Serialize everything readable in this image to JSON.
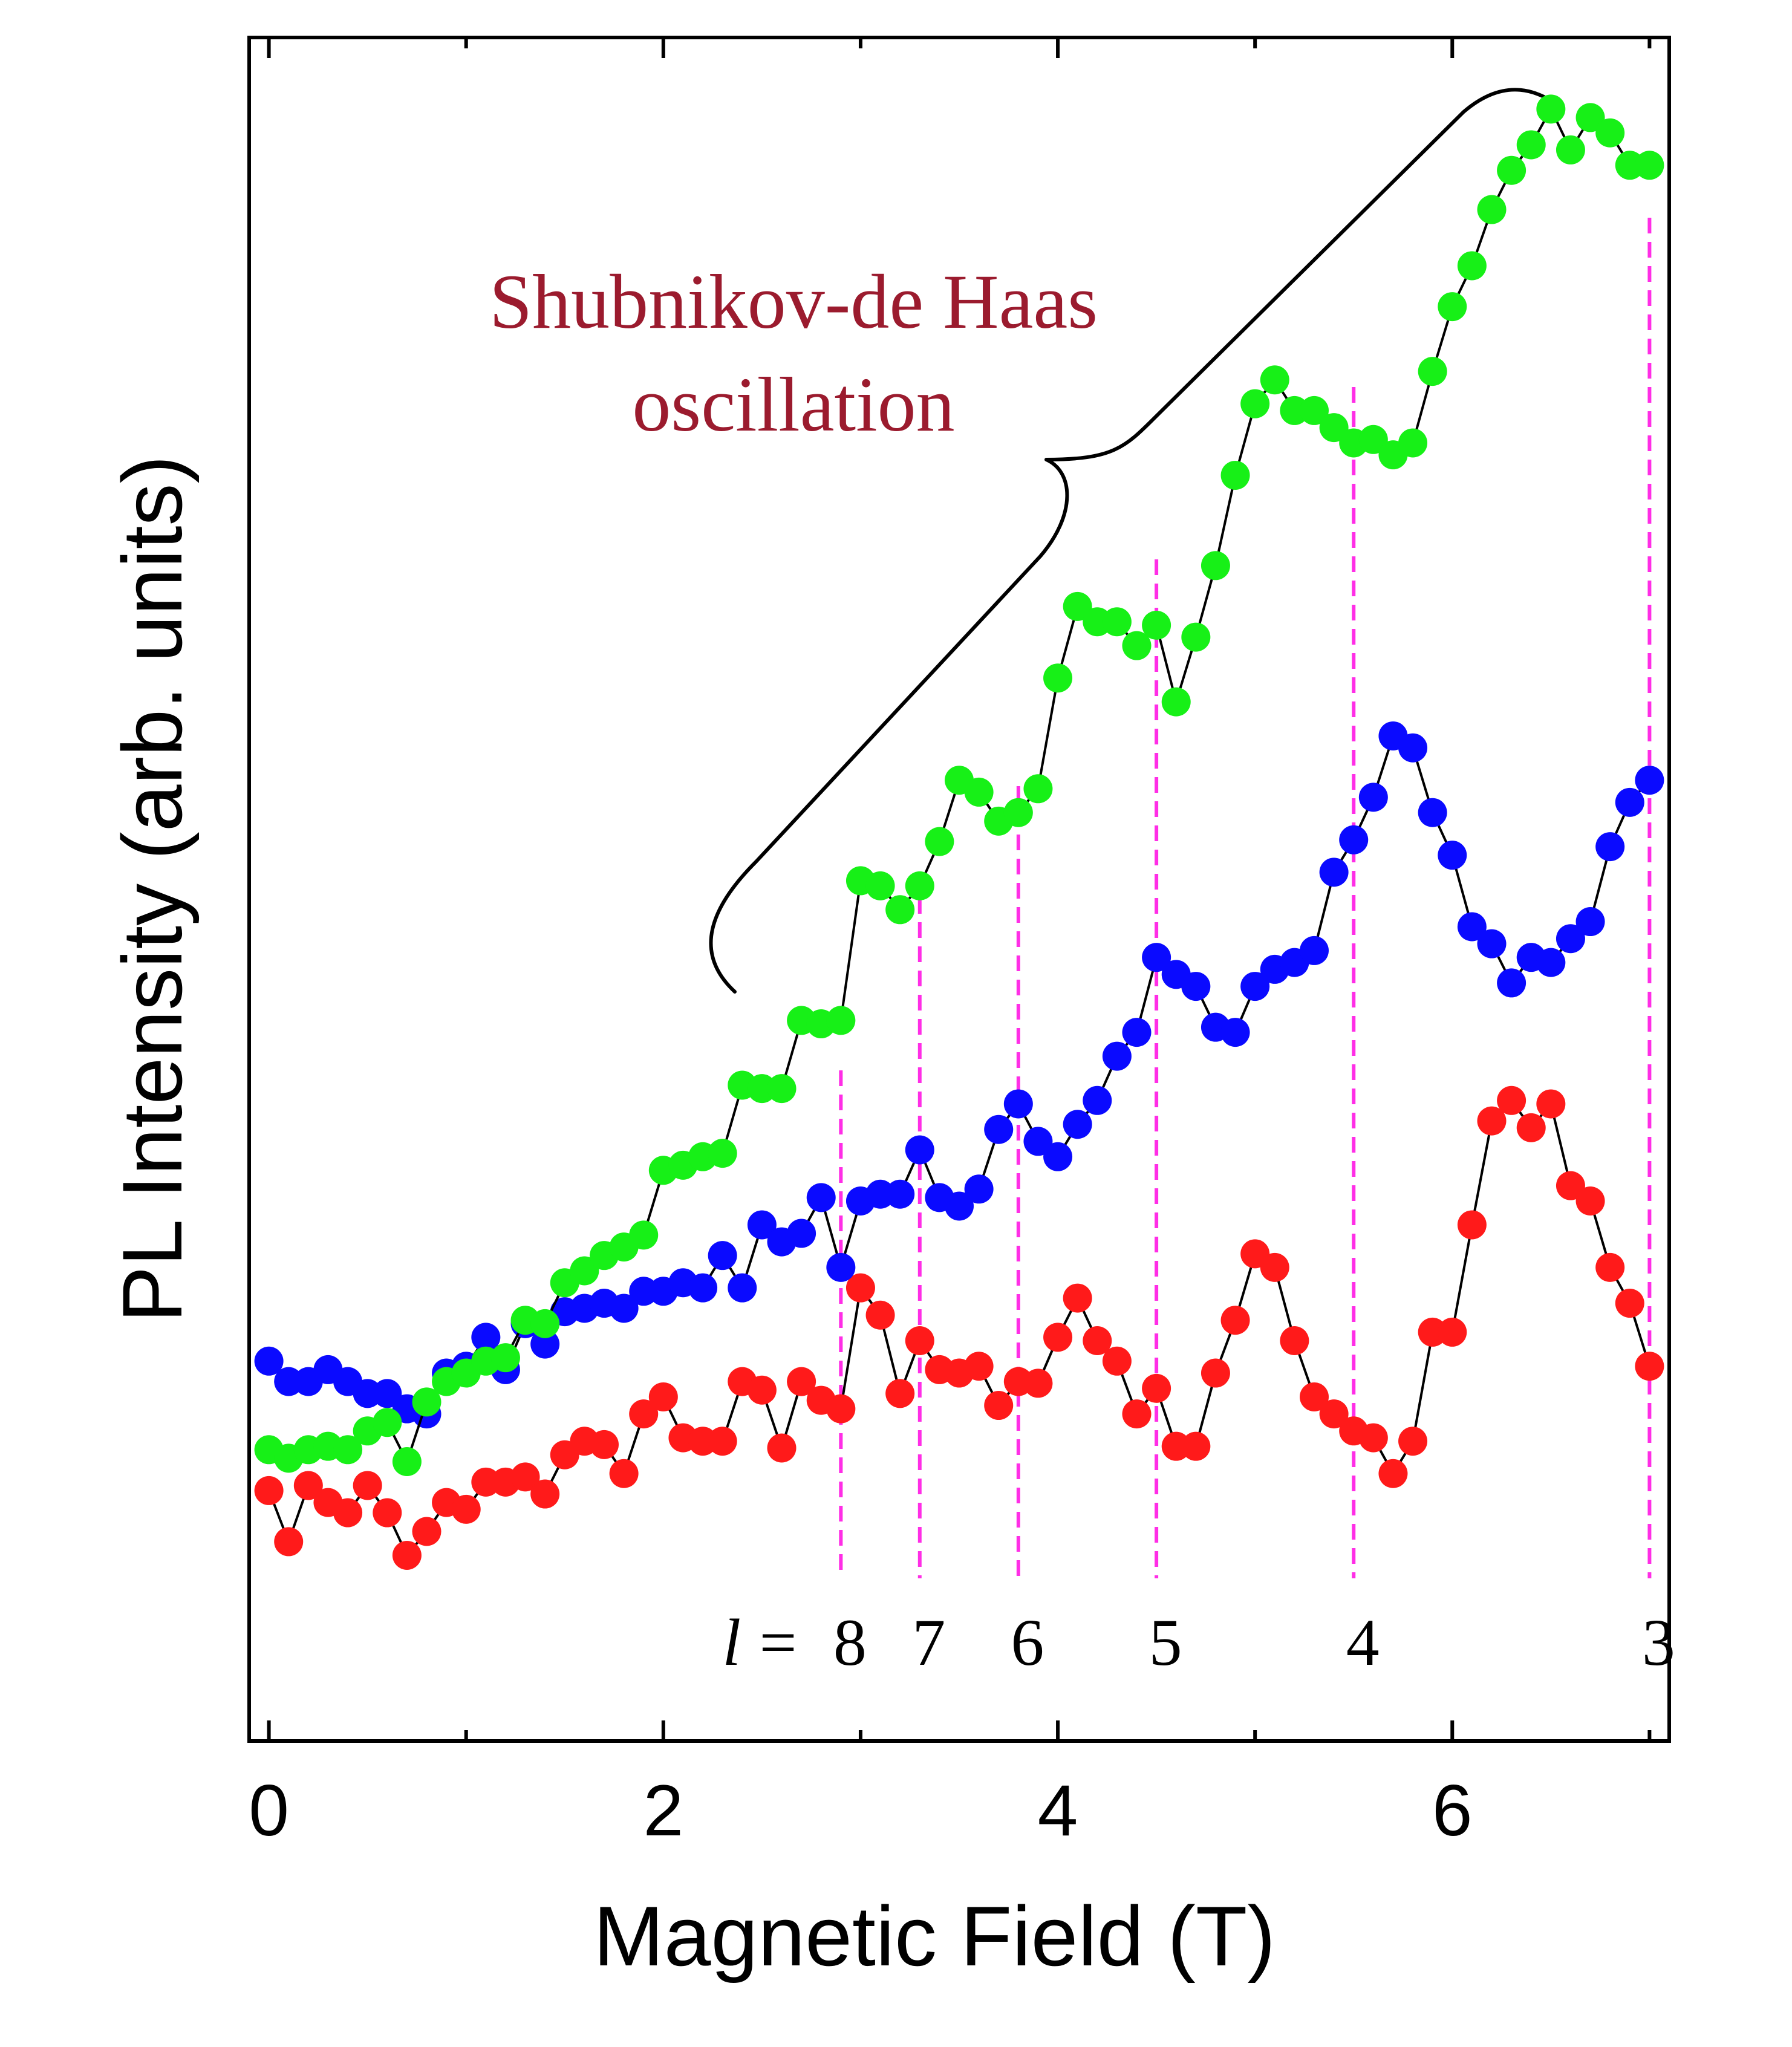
{
  "chart_data": {
    "type": "scatter",
    "xlabel": "Magnetic Field (T)",
    "ylabel": "PL Intensity (arb. units)",
    "xlim": [
      -0.1,
      7.1
    ],
    "ylim": [
      0,
      10
    ],
    "x_ticks": [
      0,
      2,
      4,
      6
    ],
    "x_minor_ticks": [
      1,
      3,
      5,
      7
    ],
    "y_ticks_labeled": false,
    "annotation": {
      "text_line1": "Shubnikov-de Haas",
      "text_line2": "oscillation",
      "color": "#9b1b2e"
    },
    "landau_levels": {
      "prefix_italic": "l",
      "prefix_eq": " = ",
      "levels": [
        {
          "label": "8",
          "x": 2.9
        },
        {
          "label": "7",
          "x": 3.3
        },
        {
          "label": "6",
          "x": 3.8
        },
        {
          "label": "5",
          "x": 4.5
        },
        {
          "label": "4",
          "x": 5.5
        },
        {
          "label": "3",
          "x": 7.0
        }
      ],
      "line_color": "#ff2ee6"
    },
    "series": [
      {
        "color": "#ff1a1a",
        "x": [
          0,
          0.1,
          0.2,
          0.3,
          0.4,
          0.5,
          0.6,
          0.7,
          0.8,
          0.9,
          1.0,
          1.1,
          1.2,
          1.3,
          1.4,
          1.5,
          1.6,
          1.7,
          1.8,
          1.9,
          2.0,
          2.1,
          2.2,
          2.3,
          2.4,
          2.5,
          2.6,
          2.7,
          2.8,
          2.9,
          3.0,
          3.1,
          3.2,
          3.3,
          3.4,
          3.5,
          3.6,
          3.7,
          3.8,
          3.9,
          4.0,
          4.1,
          4.2,
          4.3,
          4.4,
          4.5,
          4.6,
          4.7,
          4.8,
          4.9,
          5.0,
          5.1,
          5.2,
          5.3,
          5.4,
          5.5,
          5.6,
          5.7,
          5.8,
          5.9,
          6.0,
          6.1,
          6.2,
          6.3,
          6.4,
          6.5,
          6.6,
          6.7,
          6.8,
          6.9,
          7.0
        ],
        "y": [
          1.47,
          1.17,
          1.5,
          1.4,
          1.34,
          1.5,
          1.34,
          1.09,
          1.23,
          1.4,
          1.36,
          1.52,
          1.52,
          1.55,
          1.45,
          1.68,
          1.76,
          1.74,
          1.57,
          1.92,
          2.02,
          1.78,
          1.76,
          1.76,
          2.11,
          2.06,
          1.72,
          2.11,
          2.0,
          1.95,
          2.66,
          2.5,
          2.04,
          2.35,
          2.18,
          2.16,
          2.2,
          1.97,
          2.11,
          2.1,
          2.37,
          2.6,
          2.35,
          2.23,
          1.92,
          2.07,
          1.73,
          1.73,
          2.16,
          2.47,
          2.86,
          2.78,
          2.35,
          2.02,
          1.92,
          1.82,
          1.78,
          1.57,
          1.76,
          2.4,
          2.4,
          3.03,
          3.64,
          3.76,
          3.6,
          3.74,
          3.26,
          3.17,
          2.78,
          2.57,
          2.2
        ]
      },
      {
        "color": "#0a0aff",
        "x": [
          0,
          0.1,
          0.2,
          0.3,
          0.4,
          0.5,
          0.6,
          0.7,
          0.8,
          0.9,
          1.0,
          1.1,
          1.2,
          1.3,
          1.4,
          1.5,
          1.6,
          1.7,
          1.8,
          1.9,
          2.0,
          2.1,
          2.2,
          2.3,
          2.4,
          2.5,
          2.6,
          2.7,
          2.8,
          2.9,
          3.0,
          3.1,
          3.2,
          3.3,
          3.4,
          3.5,
          3.6,
          3.7,
          3.8,
          3.9,
          4.0,
          4.1,
          4.2,
          4.3,
          4.4,
          4.5,
          4.6,
          4.7,
          4.8,
          4.9,
          5.0,
          5.1,
          5.2,
          5.3,
          5.4,
          5.5,
          5.6,
          5.7,
          5.8,
          5.9,
          6.0,
          6.1,
          6.2,
          6.3,
          6.4,
          6.5,
          6.6,
          6.7,
          6.8,
          6.9,
          7.0
        ],
        "y": [
          2.23,
          2.11,
          2.11,
          2.18,
          2.11,
          2.04,
          2.04,
          1.95,
          1.92,
          2.16,
          2.2,
          2.37,
          2.18,
          2.45,
          2.33,
          2.52,
          2.54,
          2.57,
          2.54,
          2.64,
          2.64,
          2.69,
          2.66,
          2.85,
          2.66,
          3.03,
          2.93,
          2.98,
          3.19,
          2.78,
          3.17,
          3.21,
          3.21,
          3.47,
          3.19,
          3.14,
          3.24,
          3.59,
          3.74,
          3.52,
          3.43,
          3.62,
          3.76,
          4.02,
          4.16,
          4.6,
          4.5,
          4.43,
          4.19,
          4.16,
          4.43,
          4.53,
          4.57,
          4.64,
          5.1,
          5.29,
          5.54,
          5.9,
          5.83,
          5.45,
          5.2,
          4.78,
          4.68,
          4.45,
          4.6,
          4.57,
          4.71,
          4.81,
          5.25,
          5.51,
          5.64
        ]
      },
      {
        "color": "#17f017",
        "x": [
          0,
          0.1,
          0.2,
          0.3,
          0.4,
          0.5,
          0.6,
          0.7,
          0.8,
          0.9,
          1.0,
          1.1,
          1.2,
          1.3,
          1.4,
          1.5,
          1.6,
          1.7,
          1.8,
          1.9,
          2.0,
          2.1,
          2.2,
          2.3,
          2.4,
          2.5,
          2.6,
          2.7,
          2.8,
          2.9,
          3.0,
          3.1,
          3.2,
          3.3,
          3.4,
          3.5,
          3.6,
          3.7,
          3.8,
          3.9,
          4.0,
          4.1,
          4.2,
          4.3,
          4.4,
          4.5,
          4.6,
          4.7,
          4.8,
          4.9,
          5.0,
          5.1,
          5.2,
          5.3,
          5.4,
          5.5,
          5.6,
          5.7,
          5.8,
          5.9,
          6.0,
          6.1,
          6.2,
          6.3,
          6.4,
          6.5,
          6.6,
          6.7,
          6.8,
          6.9,
          7.0
        ],
        "y": [
          1.71,
          1.66,
          1.71,
          1.73,
          1.71,
          1.82,
          1.87,
          1.64,
          1.99,
          2.11,
          2.16,
          2.23,
          2.25,
          2.47,
          2.45,
          2.69,
          2.76,
          2.85,
          2.9,
          2.97,
          3.35,
          3.38,
          3.43,
          3.45,
          3.85,
          3.83,
          3.83,
          4.23,
          4.21,
          4.23,
          5.05,
          5.02,
          4.88,
          5.02,
          5.28,
          5.64,
          5.57,
          5.4,
          5.45,
          5.59,
          6.24,
          6.66,
          6.57,
          6.57,
          6.43,
          6.55,
          6.1,
          6.48,
          6.9,
          7.43,
          7.85,
          7.99,
          7.81,
          7.81,
          7.71,
          7.62,
          7.64,
          7.55,
          7.62,
          8.04,
          8.42,
          8.66,
          8.99,
          9.22,
          9.37,
          9.58,
          9.34,
          9.53,
          9.44,
          9.25,
          9.25
        ]
      }
    ]
  }
}
